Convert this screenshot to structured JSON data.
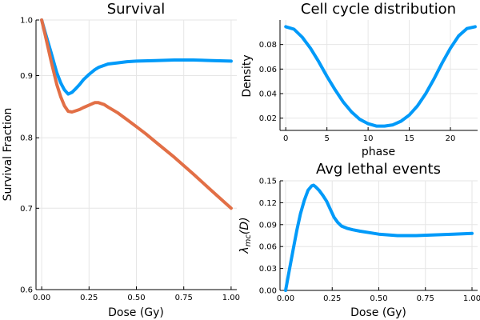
{
  "chart_data": [
    {
      "id": "survival",
      "type": "line",
      "title": "Survival",
      "xlabel": "Dose (Gy)",
      "ylabel": "Survival Fraction",
      "xlim": [
        -0.03,
        1.03
      ],
      "ylim": [
        0.6,
        1.0
      ],
      "y_scale": "log",
      "xticks": [
        0,
        0.25,
        0.5,
        0.75,
        1.0
      ],
      "xtick_labels": [
        "0.00",
        "0.25",
        "0.50",
        "0.75",
        "1.00"
      ],
      "yticks": [
        0.6,
        0.7,
        0.8,
        0.9,
        1.0
      ],
      "ytick_labels": [
        "0.6",
        "0.7",
        "0.8",
        "0.9",
        "1.0"
      ],
      "grid": true,
      "series": [
        {
          "color": "#009af9",
          "x": [
            0,
            0.02,
            0.05,
            0.08,
            0.1,
            0.12,
            0.14,
            0.16,
            0.18,
            0.2,
            0.22,
            0.25,
            0.28,
            0.3,
            0.35,
            0.4,
            0.45,
            0.5,
            0.6,
            0.7,
            0.8,
            0.9,
            1.0
          ],
          "y": [
            1.0,
            0.975,
            0.94,
            0.905,
            0.888,
            0.876,
            0.869,
            0.872,
            0.878,
            0.885,
            0.893,
            0.902,
            0.91,
            0.914,
            0.92,
            0.922,
            0.924,
            0.925,
            0.926,
            0.927,
            0.927,
            0.926,
            0.925
          ]
        },
        {
          "color": "#e26f46",
          "x": [
            0,
            0.02,
            0.05,
            0.08,
            0.1,
            0.12,
            0.14,
            0.16,
            0.18,
            0.2,
            0.22,
            0.25,
            0.28,
            0.3,
            0.33,
            0.35,
            0.4,
            0.45,
            0.5,
            0.55,
            0.6,
            0.7,
            0.8,
            0.9,
            1.0
          ],
          "y": [
            1.0,
            0.97,
            0.925,
            0.885,
            0.865,
            0.85,
            0.841,
            0.84,
            0.842,
            0.844,
            0.847,
            0.851,
            0.855,
            0.855,
            0.852,
            0.848,
            0.839,
            0.828,
            0.817,
            0.806,
            0.794,
            0.771,
            0.747,
            0.723,
            0.7
          ]
        }
      ]
    },
    {
      "id": "cellcycle",
      "type": "line",
      "title": "Cell cycle distribution",
      "xlabel": "phase",
      "ylabel": "Density",
      "xlim": [
        -0.7,
        23.3
      ],
      "ylim": [
        0.01,
        0.1
      ],
      "xticks": [
        0,
        5,
        10,
        15,
        20
      ],
      "xtick_labels": [
        "0",
        "5",
        "10",
        "15",
        "20"
      ],
      "yticks": [
        0.02,
        0.04,
        0.06,
        0.08
      ],
      "ytick_labels": [
        "0.02",
        "0.04",
        "0.06",
        "0.08"
      ],
      "grid": true,
      "series": [
        {
          "color": "#009af9",
          "x": [
            0,
            1,
            2,
            3,
            4,
            5,
            6,
            7,
            8,
            9,
            10,
            11,
            12,
            13,
            14,
            15,
            16,
            17,
            18,
            19,
            20,
            21,
            22,
            23
          ],
          "y": [
            0.0945,
            0.0925,
            0.086,
            0.077,
            0.066,
            0.054,
            0.043,
            0.033,
            0.025,
            0.019,
            0.0155,
            0.0135,
            0.0135,
            0.0145,
            0.0175,
            0.0225,
            0.03,
            0.04,
            0.052,
            0.065,
            0.077,
            0.087,
            0.093,
            0.0945
          ]
        }
      ]
    },
    {
      "id": "lethal",
      "type": "line",
      "title": "Avg lethal events",
      "xlabel": "Dose (Gy)",
      "ylabel_base": "λ",
      "ylabel_sub": "mc",
      "ylabel_tail": "(D)",
      "xlim": [
        -0.03,
        1.03
      ],
      "ylim": [
        0,
        0.15
      ],
      "xticks": [
        0,
        0.25,
        0.5,
        0.75,
        1.0
      ],
      "xtick_labels": [
        "0.00",
        "0.25",
        "0.50",
        "0.75",
        "1.00"
      ],
      "yticks": [
        0,
        0.03,
        0.06,
        0.09,
        0.12,
        0.15
      ],
      "ytick_labels": [
        "0.00",
        "0.03",
        "0.06",
        "0.09",
        "0.12",
        "0.15"
      ],
      "grid": true,
      "series": [
        {
          "color": "#009af9",
          "x": [
            0,
            0.02,
            0.04,
            0.06,
            0.08,
            0.1,
            0.12,
            0.14,
            0.15,
            0.16,
            0.18,
            0.2,
            0.22,
            0.24,
            0.26,
            0.28,
            0.3,
            0.33,
            0.36,
            0.4,
            0.45,
            0.5,
            0.55,
            0.6,
            0.7,
            0.8,
            0.9,
            1.0
          ],
          "y": [
            0,
            0.028,
            0.055,
            0.082,
            0.105,
            0.123,
            0.137,
            0.143,
            0.144,
            0.142,
            0.137,
            0.13,
            0.122,
            0.111,
            0.1,
            0.093,
            0.088,
            0.085,
            0.083,
            0.081,
            0.079,
            0.077,
            0.076,
            0.075,
            0.075,
            0.076,
            0.077,
            0.078
          ]
        }
      ]
    }
  ]
}
